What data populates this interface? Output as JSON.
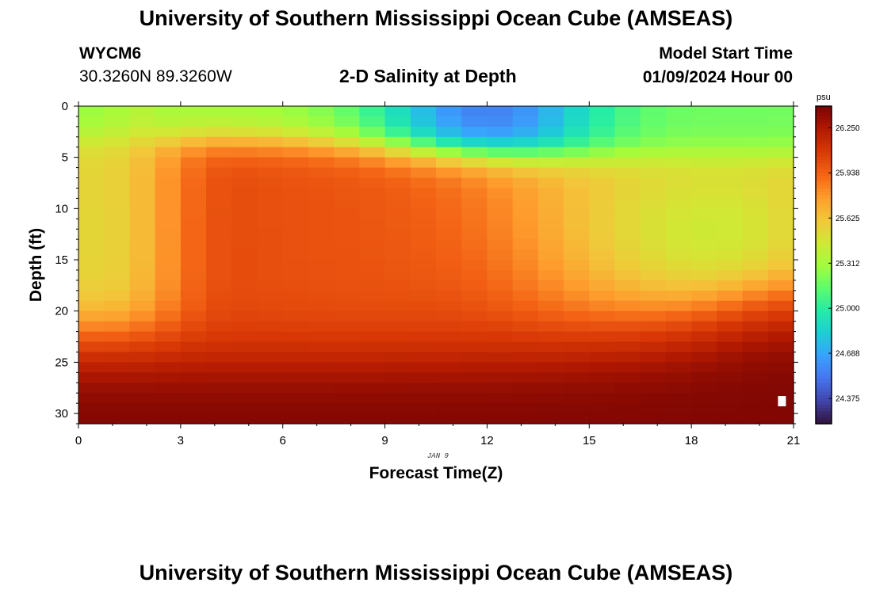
{
  "header": {
    "title": "University of Southern Mississippi Ocean Cube (AMSEAS)",
    "station_id": "WYCM6",
    "coordinates": "30.3260N  89.3260W",
    "subtitle": "2-D Salinity at Depth",
    "model_start_label": "Model Start Time",
    "model_start_value": "01/09/2024 Hour 00"
  },
  "footer": {
    "title": "University of Southern Mississippi Ocean Cube (AMSEAS)"
  },
  "chart_data": {
    "type": "heatmap",
    "title": "2-D Salinity at Depth",
    "xlabel": "Forecast Time(Z)",
    "ylabel": "Depth (ft)",
    "date_label": "JAN 9",
    "x_ticks": [
      0,
      3,
      6,
      9,
      12,
      15,
      18,
      21
    ],
    "y_ticks": [
      0,
      5,
      10,
      15,
      20,
      25,
      30
    ],
    "xlim": [
      0,
      21
    ],
    "ylim": [
      31,
      0
    ],
    "colorbar": {
      "unit": "psu",
      "min": 24.2,
      "max": 26.4,
      "ticks": [
        "26.250",
        "25.938",
        "25.625",
        "25.312",
        "25.000",
        "24.688",
        "24.375"
      ],
      "colormap": [
        "#30123b",
        "#4145ab",
        "#4675ed",
        "#39a2fc",
        "#1bcfd4",
        "#24eca6",
        "#61fc6c",
        "#a4fc3b",
        "#d1e834",
        "#f3c63a",
        "#fe9b2d",
        "#f36315",
        "#d93806",
        "#b11901",
        "#7a0403"
      ]
    },
    "grid": {
      "x_step_hours": 0.75,
      "y_step_ft": 1.0,
      "n_cols": 28,
      "n_rows": 31
    },
    "field_description": "Low-salinity layer (~24.3-25.3 psu) in upper 0-5 ft centred near hour 12; mid-depth freshwater wedge (~25.6 psu) on left 0-20 ft and right 8-20 ft; high-salinity core (~26.0-26.1 psu) between hours 5-12 at 3-20 ft; strong halocline increasing to ~26.4 psu near bottom (28-31 ft)."
  }
}
